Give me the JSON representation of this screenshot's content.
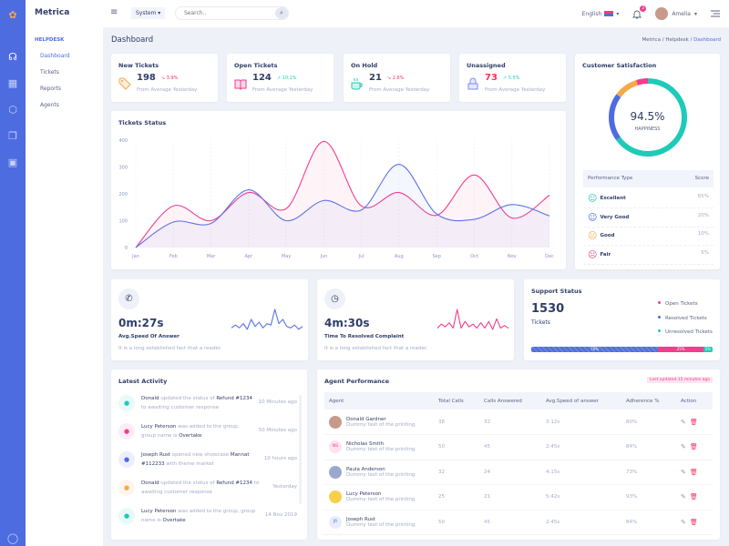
{
  "app": {
    "name": "Metrica"
  },
  "nav": {
    "section": "HELPDESK",
    "items": [
      {
        "label": "Dashboard",
        "active": true
      },
      {
        "label": "Tickets"
      },
      {
        "label": "Reports"
      },
      {
        "label": "Agents"
      }
    ]
  },
  "topbar": {
    "system_label": "System",
    "search_placeholder": "Search..",
    "language": "English",
    "notifications": "2",
    "user": "Amelia"
  },
  "page": {
    "title": "Dashboard",
    "breadcrumb": [
      "Metrica",
      "Helpdesk",
      "Dashboard"
    ]
  },
  "stats": [
    {
      "title": "New Tickets",
      "value": "198",
      "change": "3.9%",
      "trend": "down",
      "sub": "From Average Yesterday",
      "icon": "tag-icon",
      "color": "#f7a84b"
    },
    {
      "title": "Open Tickets",
      "value": "124",
      "change": "10.1%",
      "trend": "up",
      "sub": "From Average Yesterday",
      "icon": "book-icon",
      "color": "#f53c8d"
    },
    {
      "title": "On Hold",
      "value": "21",
      "change": "2.6%",
      "trend": "down",
      "sub": "From Average Yesterday",
      "icon": "coffee-icon",
      "color": "#1ecab8"
    },
    {
      "title": "Unassigned",
      "value": "73",
      "change": "5.5%",
      "trend": "up",
      "sub": "From Average Yesterday",
      "icon": "lock-icon",
      "color": "#7b8ff0"
    }
  ],
  "tickets_status": {
    "title": "Tickets Status"
  },
  "chart_data": [
    {
      "type": "area",
      "x": [
        "Jan",
        "Feb",
        "Mar",
        "Apr",
        "May",
        "Jun",
        "Jul",
        "Aug",
        "Sep",
        "Oct",
        "Nov",
        "Dec"
      ],
      "ylim": [
        0,
        400
      ],
      "yticks": [
        0,
        100,
        200,
        300,
        400
      ],
      "series": [
        {
          "color": "#f53c8d",
          "values": [
            0,
            155,
            100,
            205,
            145,
            395,
            155,
            205,
            120,
            270,
            110,
            195
          ]
        },
        {
          "color": "#5b73e8",
          "values": [
            0,
            95,
            90,
            215,
            100,
            175,
            140,
            310,
            125,
            105,
            160,
            118
          ]
        }
      ]
    },
    {
      "type": "pie",
      "title": "Customer Satisfaction",
      "center_value": "94.5%",
      "center_label": "HAPPINESS",
      "categories": [
        "Excellent",
        "Very Good",
        "Good",
        "Fair"
      ],
      "values": [
        65,
        20,
        10,
        5
      ],
      "colors": [
        "#1ecab8",
        "#4d6ce0",
        "#f7a84b",
        "#f53c8d"
      ]
    },
    {
      "type": "line",
      "color": "#5b73e8",
      "values": [
        3,
        5,
        3,
        6,
        2,
        9,
        4,
        7,
        3,
        6,
        5,
        16,
        6,
        9,
        4,
        3,
        5,
        2,
        4
      ]
    },
    {
      "type": "line",
      "color": "#f53c8d",
      "values": [
        3,
        6,
        4,
        7,
        3,
        17,
        3,
        8,
        4,
        6,
        3,
        7,
        3,
        8,
        2,
        10,
        3,
        5,
        3
      ]
    },
    {
      "type": "bar",
      "title": "Support Status",
      "total": "1530",
      "unit": "Tickets",
      "categories": [
        "Resolved Tickets",
        "Open Tickets",
        "Unresolved Tickets"
      ],
      "values": [
        70,
        25,
        5
      ],
      "labels": [
        "70%",
        "25%",
        "5%"
      ],
      "colors": [
        "#4d6ce0",
        "#f53c8d",
        "#1ecab8"
      ]
    }
  ],
  "performance": {
    "header": [
      "Performance Type",
      "Score"
    ],
    "rows": [
      {
        "label": "Excellent",
        "score": "65%",
        "color": "#1ecab8"
      },
      {
        "label": "Very Good",
        "score": "20%",
        "color": "#4d6ce0"
      },
      {
        "label": "Good",
        "score": "10%",
        "color": "#f7a84b"
      },
      {
        "label": "Fair",
        "score": "5%",
        "color": "#f53c8d"
      }
    ]
  },
  "kpis": [
    {
      "value": "0m:27s",
      "label": "Avg.Speed Of Answer",
      "desc": "It is a long established fact that a reader.",
      "icon": "phone-icon"
    },
    {
      "value": "4m:30s",
      "label": "Time To Resolved Complaint",
      "desc": "It is a long established fact that a reader.",
      "icon": "clock-icon"
    }
  ],
  "support": {
    "title": "Support Status",
    "total": "1530",
    "unit": "Tickets",
    "legend": [
      {
        "label": "Open Tickets",
        "color": "#f53c8d"
      },
      {
        "label": "Resolved Tickets",
        "color": "#4d6ce0"
      },
      {
        "label": "Unresolved Tickets",
        "color": "#1ecab8"
      }
    ]
  },
  "activity": {
    "title": "Latest Activity",
    "items": [
      {
        "who": "Donald",
        "text": " updated the status of ",
        "obj": "Refund #1234",
        "text2": " to awaiting customer response",
        "time": "10 Minutes ago",
        "color": "#1ecab8"
      },
      {
        "who": "Lucy Peterson",
        "text": " was added to the group, group name is ",
        "obj": "Overtake",
        "text2": "",
        "time": "50 Minutes ago",
        "color": "#f53c8d"
      },
      {
        "who": "Joseph Rust",
        "text": " opened new showcase ",
        "obj": "Mannat #112233",
        "text2": " with theme market",
        "time": "10 hours ago",
        "color": "#4d6ce0"
      },
      {
        "who": "Donald",
        "text": " updated the status of ",
        "obj": "Refund #1234",
        "text2": " to awaiting customer response",
        "time": "Yesterday",
        "color": "#f7a84b"
      },
      {
        "who": "Lucy Peterson",
        "text": " was added to the group, group name is ",
        "obj": "Overtake",
        "text2": "",
        "time": "14 Nov 2019",
        "color": "#1ecab8"
      }
    ]
  },
  "agents": {
    "title": "Agent Performance",
    "updated": "Last updated 15 minutes ago",
    "columns": [
      "Agent",
      "Total Calls",
      "Calls Answered",
      "Avg.Speed of answer",
      "Adherence %",
      "Action"
    ],
    "rows": [
      {
        "name": "Donald Gardner",
        "sub": "Dummy text of the printing.",
        "total": "38",
        "answered": "32",
        "speed": "3:12s",
        "adherence": "80%",
        "initials": ""
      },
      {
        "name": "Nicholas Smith",
        "sub": "Dummy text of the printing.",
        "total": "50",
        "answered": "45",
        "speed": "2:45s",
        "adherence": "84%",
        "initials": "NS"
      },
      {
        "name": "Paula Anderson",
        "sub": "Dummy text of the printing.",
        "total": "32",
        "answered": "24",
        "speed": "4:15s",
        "adherence": "73%",
        "initials": ""
      },
      {
        "name": "Lucy Peterson",
        "sub": "Dummy text of the printing.",
        "total": "25",
        "answered": "21",
        "speed": "5:42s",
        "adherence": "93%",
        "initials": ""
      },
      {
        "name": "Joseph Rust",
        "sub": "Dummy text of the printing.",
        "total": "50",
        "answered": "45",
        "speed": "2:45s",
        "adherence": "84%",
        "initials": "JR"
      }
    ]
  }
}
